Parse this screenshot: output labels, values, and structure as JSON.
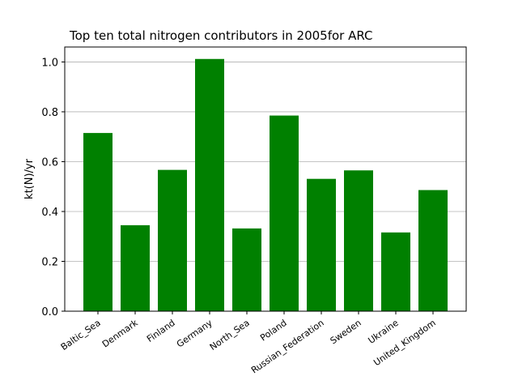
{
  "chart_data": {
    "type": "bar",
    "title": "Top ten total nitrogen contributors in 2005for ARC",
    "xlabel": "",
    "ylabel": "kt(N)/yr",
    "categories": [
      "Baltic_Sea",
      "Denmark",
      "Finland",
      "Germany",
      "North_Sea",
      "Poland",
      "Russian_Federation",
      "Sweden",
      "Ukraine",
      "United_Kingdom"
    ],
    "values": [
      0.715,
      0.345,
      0.567,
      1.012,
      0.332,
      0.785,
      0.531,
      0.565,
      0.316,
      0.486
    ],
    "ylim": [
      0,
      1.06
    ],
    "yticks": [
      "0.0",
      "0.2",
      "0.4",
      "0.6",
      "0.8",
      "1.0"
    ],
    "grid": "y",
    "bar_color": "#008000",
    "grid_color": "#b0b0b0"
  }
}
